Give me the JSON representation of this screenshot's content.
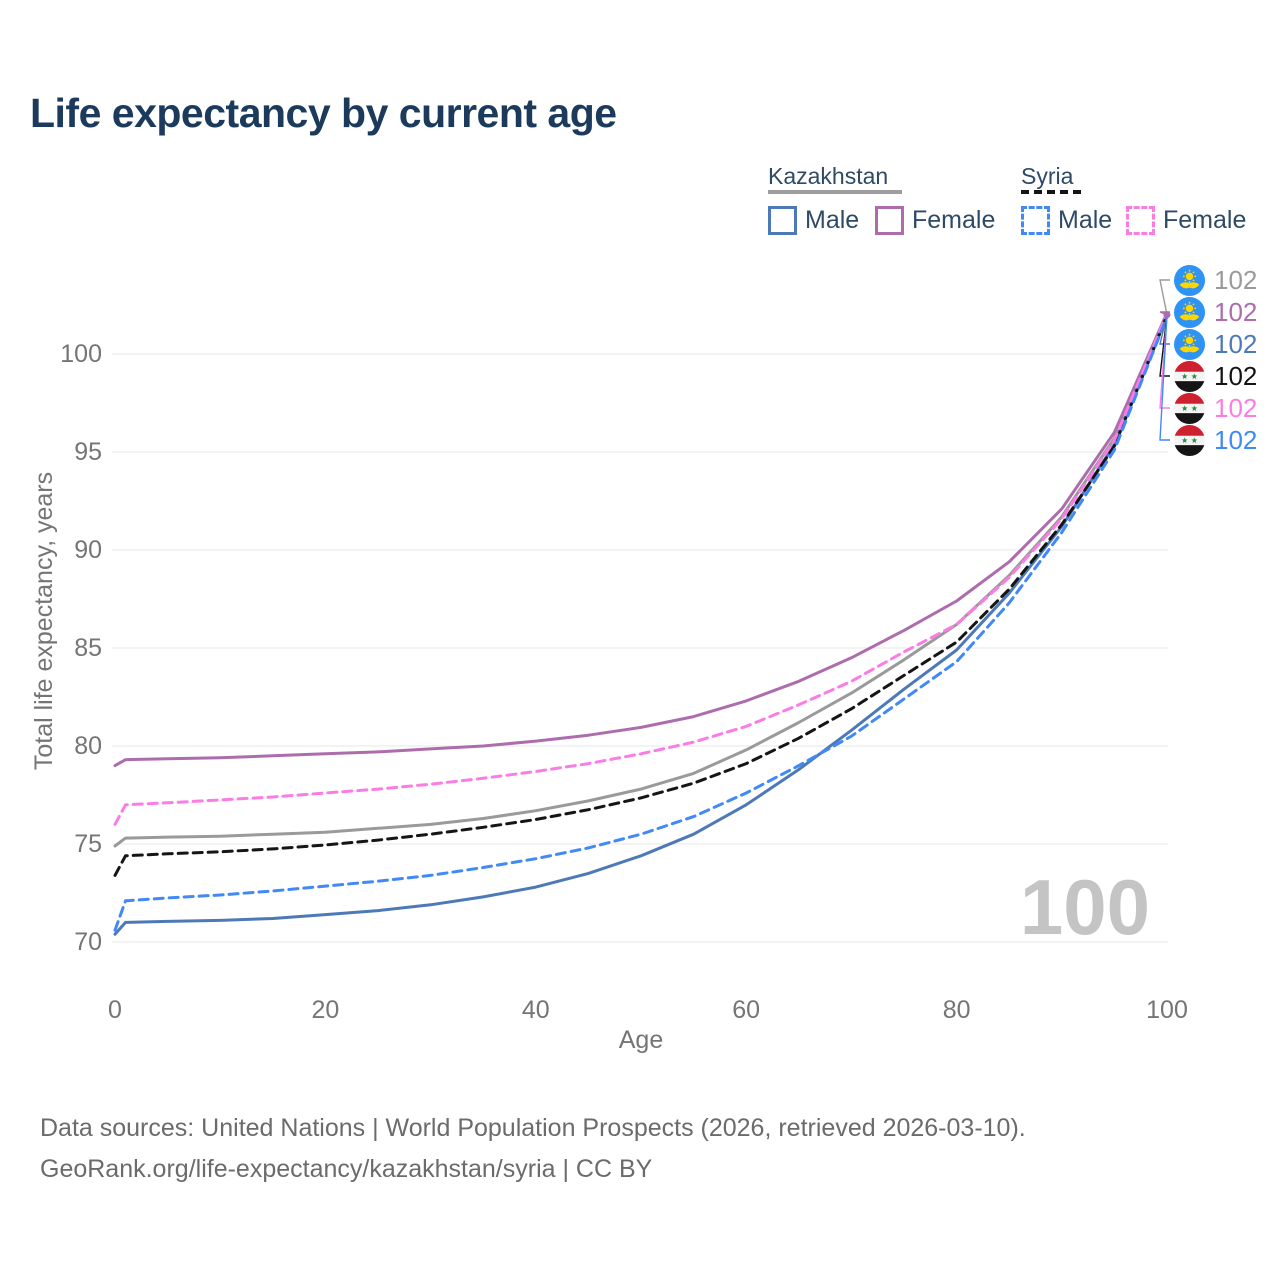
{
  "title": "Life expectancy by current age",
  "legend": {
    "groups": [
      {
        "country": "Kazakhstan",
        "line_style": "solid",
        "swatch_color": "#9e9e9e",
        "items": [
          {
            "label": "Male",
            "color": "#4d79b8",
            "dashed": false
          },
          {
            "label": "Female",
            "color": "#ad6dad",
            "dashed": false
          }
        ]
      },
      {
        "country": "Syria",
        "line_style": "dashed",
        "swatch_color": "#141414",
        "items": [
          {
            "label": "Male",
            "color": "#4089f7",
            "dashed": true
          },
          {
            "label": "Female",
            "color": "#fb7ce4",
            "dashed": true
          }
        ]
      }
    ]
  },
  "watermark": "100",
  "chart_data": {
    "type": "line",
    "title": "Life expectancy by current age",
    "xlabel": "Age",
    "ylabel": "Total life expectancy, years",
    "xticks": [
      0,
      20,
      40,
      60,
      80,
      100
    ],
    "yticks": [
      70,
      75,
      80,
      85,
      90,
      95,
      100
    ],
    "xlim": [
      0,
      100
    ],
    "ylim": [
      70,
      103
    ],
    "grid": "horizontal",
    "x": [
      0,
      1,
      5,
      10,
      15,
      20,
      25,
      30,
      35,
      40,
      45,
      50,
      55,
      60,
      65,
      70,
      75,
      80,
      85,
      90,
      95,
      100
    ],
    "series": [
      {
        "name": "Kazakhstan Total",
        "color": "#9a9a9a",
        "dashed": false,
        "values": [
          74.9,
          75.3,
          75.35,
          75.4,
          75.5,
          75.6,
          75.8,
          76.0,
          76.3,
          76.7,
          77.2,
          77.8,
          78.6,
          79.8,
          81.2,
          82.7,
          84.4,
          86.2,
          88.7,
          91.7,
          95.7,
          102.0
        ]
      },
      {
        "name": "Kazakhstan Female",
        "color": "#ad6dad",
        "dashed": false,
        "values": [
          79.0,
          79.3,
          79.35,
          79.4,
          79.5,
          79.6,
          79.7,
          79.85,
          80.0,
          80.25,
          80.55,
          80.95,
          81.5,
          82.3,
          83.3,
          84.5,
          85.9,
          87.4,
          89.4,
          92.1,
          96.0,
          102.1
        ]
      },
      {
        "name": "Kazakhstan Male",
        "color": "#4d79b8",
        "dashed": false,
        "values": [
          70.4,
          71.0,
          71.05,
          71.1,
          71.2,
          71.4,
          71.6,
          71.9,
          72.3,
          72.8,
          73.5,
          74.4,
          75.5,
          77.0,
          78.8,
          80.8,
          82.9,
          84.9,
          87.8,
          91.2,
          95.4,
          102.0
        ]
      },
      {
        "name": "Syria Total",
        "color": "#151515",
        "dashed": true,
        "values": [
          73.4,
          74.4,
          74.5,
          74.6,
          74.75,
          74.95,
          75.2,
          75.5,
          75.85,
          76.25,
          76.75,
          77.35,
          78.1,
          79.1,
          80.4,
          81.9,
          83.6,
          85.3,
          88.0,
          91.3,
          95.3,
          101.95
        ]
      },
      {
        "name": "Syria Female",
        "color": "#fb7ce4",
        "dashed": true,
        "values": [
          76.0,
          77.0,
          77.1,
          77.25,
          77.4,
          77.6,
          77.8,
          78.05,
          78.35,
          78.7,
          79.1,
          79.6,
          80.2,
          81.0,
          82.1,
          83.3,
          84.8,
          86.2,
          88.6,
          91.6,
          95.6,
          102.05
        ]
      },
      {
        "name": "Syria Male",
        "color": "#4089f7",
        "dashed": true,
        "values": [
          70.6,
          72.1,
          72.25,
          72.4,
          72.6,
          72.85,
          73.1,
          73.4,
          73.8,
          74.25,
          74.8,
          75.5,
          76.4,
          77.6,
          79.0,
          80.5,
          82.4,
          84.3,
          87.3,
          90.9,
          95.1,
          101.9
        ]
      }
    ],
    "end_labels": [
      {
        "value": "102",
        "flag": "kazakhstan",
        "color": "#9a9a9a"
      },
      {
        "value": "102",
        "flag": "kazakhstan",
        "color": "#ad6dad"
      },
      {
        "value": "102",
        "flag": "kazakhstan",
        "color": "#4d79b8"
      },
      {
        "value": "102",
        "flag": "syria",
        "color": "#141414"
      },
      {
        "value": "102",
        "flag": "syria",
        "color": "#fb7ce4"
      },
      {
        "value": "102",
        "flag": "syria",
        "color": "#4089f7"
      }
    ]
  },
  "footer": {
    "line1": "Data sources: United Nations | World Population Prospects (2026, retrieved 2026-03-10).",
    "line2": "GeoRank.org/life-expectancy/kazakhstan/syria | CC BY"
  }
}
